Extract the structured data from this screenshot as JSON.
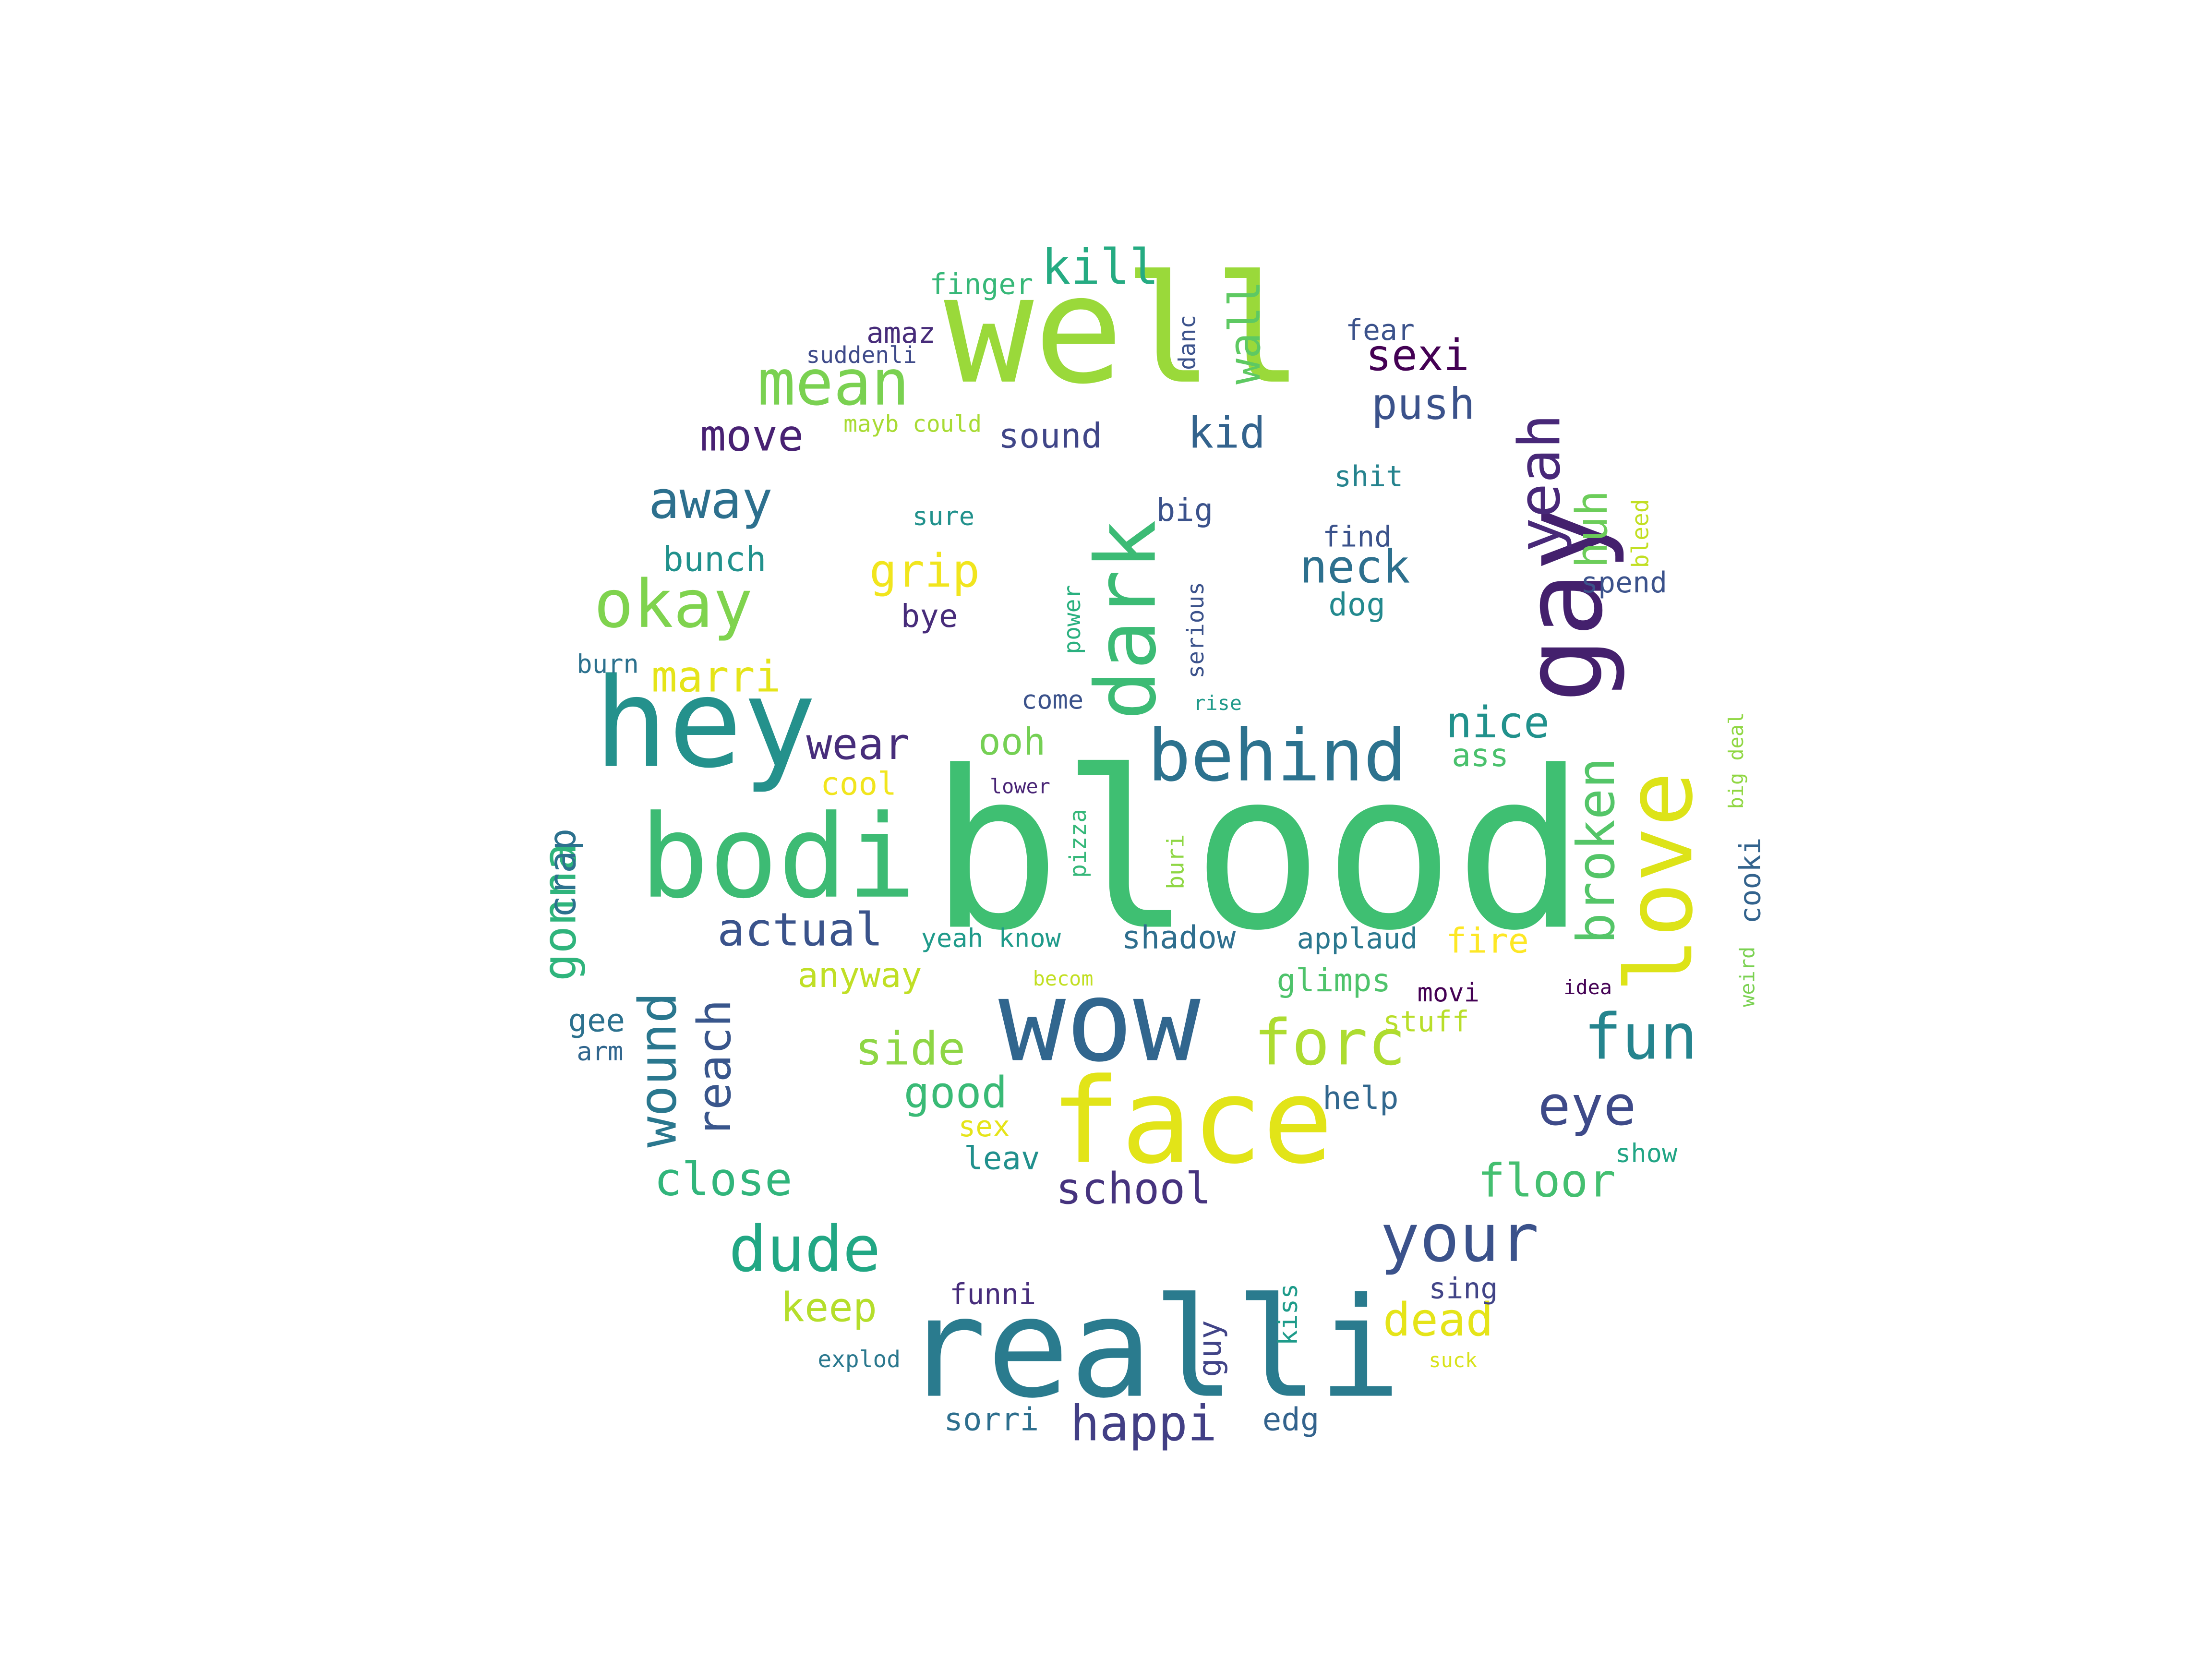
{
  "colors": {
    "background": "#ffffff",
    "palette": [
      "#440154",
      "#472c7a",
      "#3b518b",
      "#2c718e",
      "#21908d",
      "#27ad81",
      "#5cc863",
      "#aadc32",
      "#fde725"
    ]
  },
  "word_cloud": {
    "words": [
      {
        "text": "blood",
        "color": "#3fbf72",
        "vertical": false
      },
      {
        "text": "well",
        "color": "#9ad93a",
        "vertical": false
      },
      {
        "text": "realli",
        "color": "#2a7b8e",
        "vertical": false
      },
      {
        "text": "wow",
        "color": "#31668e",
        "vertical": false
      },
      {
        "text": "face",
        "color": "#e2e418",
        "vertical": false
      },
      {
        "text": "hey",
        "color": "#24918c",
        "vertical": false
      },
      {
        "text": "bodi",
        "color": "#3dbb74",
        "vertical": false
      },
      {
        "text": "gay",
        "color": "#44206d",
        "vertical": true
      },
      {
        "text": "love",
        "color": "#dde318",
        "vertical": true
      },
      {
        "text": "dark",
        "color": "#3cbb75",
        "vertical": true
      },
      {
        "text": "behind",
        "color": "#2c728e",
        "vertical": false
      },
      {
        "text": "mean",
        "color": "#7ad151",
        "vertical": false
      },
      {
        "text": "okay",
        "color": "#7fd34e",
        "vertical": false
      },
      {
        "text": "your",
        "color": "#3b528b",
        "vertical": false
      },
      {
        "text": "dude",
        "color": "#21a784",
        "vertical": false
      },
      {
        "text": "forc",
        "color": "#addc30",
        "vertical": false
      },
      {
        "text": "yeah",
        "color": "#482878",
        "vertical": true
      },
      {
        "text": "broken",
        "color": "#54c568",
        "vertical": true
      },
      {
        "text": "wound",
        "color": "#2a778e",
        "vertical": true
      },
      {
        "text": "fun",
        "color": "#25848e",
        "vertical": false
      },
      {
        "text": "eye",
        "color": "#3e4a89",
        "vertical": false
      },
      {
        "text": "happi",
        "color": "#423f85",
        "vertical": false
      },
      {
        "text": "actual",
        "color": "#3a538b",
        "vertical": false
      },
      {
        "text": "close",
        "color": "#31b57b",
        "vertical": false
      },
      {
        "text": "kill",
        "color": "#25ab82",
        "vertical": false
      },
      {
        "text": "away",
        "color": "#2d708e",
        "vertical": false
      },
      {
        "text": "gonna",
        "color": "#2fb47c",
        "vertical": true
      },
      {
        "text": "reach",
        "color": "#39568c",
        "vertical": true
      },
      {
        "text": "dead",
        "color": "#e5e419",
        "vertical": false
      },
      {
        "text": "floor",
        "color": "#44bf70",
        "vertical": false
      },
      {
        "text": "school",
        "color": "#46337e",
        "vertical": false
      },
      {
        "text": "neck",
        "color": "#2d708e",
        "vertical": false
      },
      {
        "text": "wear",
        "color": "#472d7b",
        "vertical": false
      },
      {
        "text": "grip",
        "color": "#f1e51d",
        "vertical": false
      },
      {
        "text": "side",
        "color": "#8ed645",
        "vertical": false
      },
      {
        "text": "sexi",
        "color": "#440154",
        "vertical": false
      },
      {
        "text": "push",
        "color": "#3b528b",
        "vertical": false
      },
      {
        "text": "move",
        "color": "#482173",
        "vertical": false
      },
      {
        "text": "marri",
        "color": "#e5e419",
        "vertical": false
      },
      {
        "text": "nice",
        "color": "#21918c",
        "vertical": false
      },
      {
        "text": "keep",
        "color": "#b5de2b",
        "vertical": false
      },
      {
        "text": "good",
        "color": "#3aba76",
        "vertical": false
      },
      {
        "text": "ooh",
        "color": "#75d054",
        "vertical": false
      },
      {
        "text": "huh",
        "color": "#6ccd5a",
        "vertical": true
      },
      {
        "text": "wall",
        "color": "#5ec962",
        "vertical": true
      },
      {
        "text": "kid",
        "color": "#33638d",
        "vertical": false
      },
      {
        "text": "crap",
        "color": "#2c718e",
        "vertical": true
      },
      {
        "text": "shadow",
        "color": "#2e6e8e",
        "vertical": false
      },
      {
        "text": "sorri",
        "color": "#2e6f8e",
        "vertical": false
      },
      {
        "text": "edg",
        "color": "#33638d",
        "vertical": false
      },
      {
        "text": "guy",
        "color": "#414487",
        "vertical": true
      },
      {
        "text": "glimps",
        "color": "#4ec36b",
        "vertical": false
      },
      {
        "text": "anyway",
        "color": "#c0df25",
        "vertical": false
      },
      {
        "text": "sound",
        "color": "#404688",
        "vertical": false
      },
      {
        "text": "bunch",
        "color": "#21918c",
        "vertical": false
      },
      {
        "text": "leav",
        "color": "#21908d",
        "vertical": false
      },
      {
        "text": "help",
        "color": "#31678e",
        "vertical": false
      },
      {
        "text": "fire",
        "color": "#fde725",
        "vertical": false
      },
      {
        "text": "applaud",
        "color": "#2a778e",
        "vertical": false
      },
      {
        "text": "yeah know",
        "color": "#1f9a8a",
        "vertical": false
      },
      {
        "text": "cooki",
        "color": "#33638d",
        "vertical": true
      },
      {
        "text": "cool",
        "color": "#f1e51d",
        "vertical": false
      },
      {
        "text": "bye",
        "color": "#472c7a",
        "vertical": false
      },
      {
        "text": "big",
        "color": "#3b528b",
        "vertical": false
      },
      {
        "text": "dog",
        "color": "#23898e",
        "vertical": false
      },
      {
        "text": "ass",
        "color": "#4ac16d",
        "vertical": false
      },
      {
        "text": "stuff",
        "color": "#b8de29",
        "vertical": false
      },
      {
        "text": "sex",
        "color": "#e5e419",
        "vertical": false
      },
      {
        "text": "finger",
        "color": "#37b878",
        "vertical": false
      },
      {
        "text": "amaz",
        "color": "#472c7a",
        "vertical": false
      },
      {
        "text": "fear",
        "color": "#3b528b",
        "vertical": false
      },
      {
        "text": "shit",
        "color": "#25838e",
        "vertical": false
      },
      {
        "text": "find",
        "color": "#3b528b",
        "vertical": false
      },
      {
        "text": "spend",
        "color": "#3b528b",
        "vertical": false
      },
      {
        "text": "burn",
        "color": "#2c718e",
        "vertical": false
      },
      {
        "text": "come",
        "color": "#3b528b",
        "vertical": false
      },
      {
        "text": "gee",
        "color": "#2c718e",
        "vertical": false
      },
      {
        "text": "arm",
        "color": "#31668e",
        "vertical": false
      },
      {
        "text": "movi",
        "color": "#440154",
        "vertical": false
      },
      {
        "text": "show",
        "color": "#21a585",
        "vertical": false
      },
      {
        "text": "funni",
        "color": "#472d7b",
        "vertical": false
      },
      {
        "text": "sing",
        "color": "#414487",
        "vertical": false
      },
      {
        "text": "explod",
        "color": "#2a788e",
        "vertical": false
      },
      {
        "text": "sure",
        "color": "#21918c",
        "vertical": false
      },
      {
        "text": "suddenli",
        "color": "#3e4a89",
        "vertical": false
      },
      {
        "text": "mayb could",
        "color": "#a8db34",
        "vertical": false
      },
      {
        "text": "danc",
        "color": "#3b528b",
        "vertical": true
      },
      {
        "text": "power",
        "color": "#2ab07f",
        "vertical": true
      },
      {
        "text": "serious",
        "color": "#3b528b",
        "vertical": true
      },
      {
        "text": "pizza",
        "color": "#35b779",
        "vertical": true
      },
      {
        "text": "buri",
        "color": "#8fd744",
        "vertical": true
      },
      {
        "text": "bleed",
        "color": "#c2df23",
        "vertical": true
      },
      {
        "text": "big deal",
        "color": "#90d743",
        "vertical": true
      },
      {
        "text": "weird",
        "color": "#7ad151",
        "vertical": true
      },
      {
        "text": "kiss",
        "color": "#1e9b8a",
        "vertical": true
      },
      {
        "text": "rise",
        "color": "#1f9a8a",
        "vertical": false
      },
      {
        "text": "lower",
        "color": "#482475",
        "vertical": false
      },
      {
        "text": "becom",
        "color": "#c2df23",
        "vertical": false
      },
      {
        "text": "idea",
        "color": "#440154",
        "vertical": false
      },
      {
        "text": "suck",
        "color": "#d8e219",
        "vertical": false
      }
    ]
  }
}
